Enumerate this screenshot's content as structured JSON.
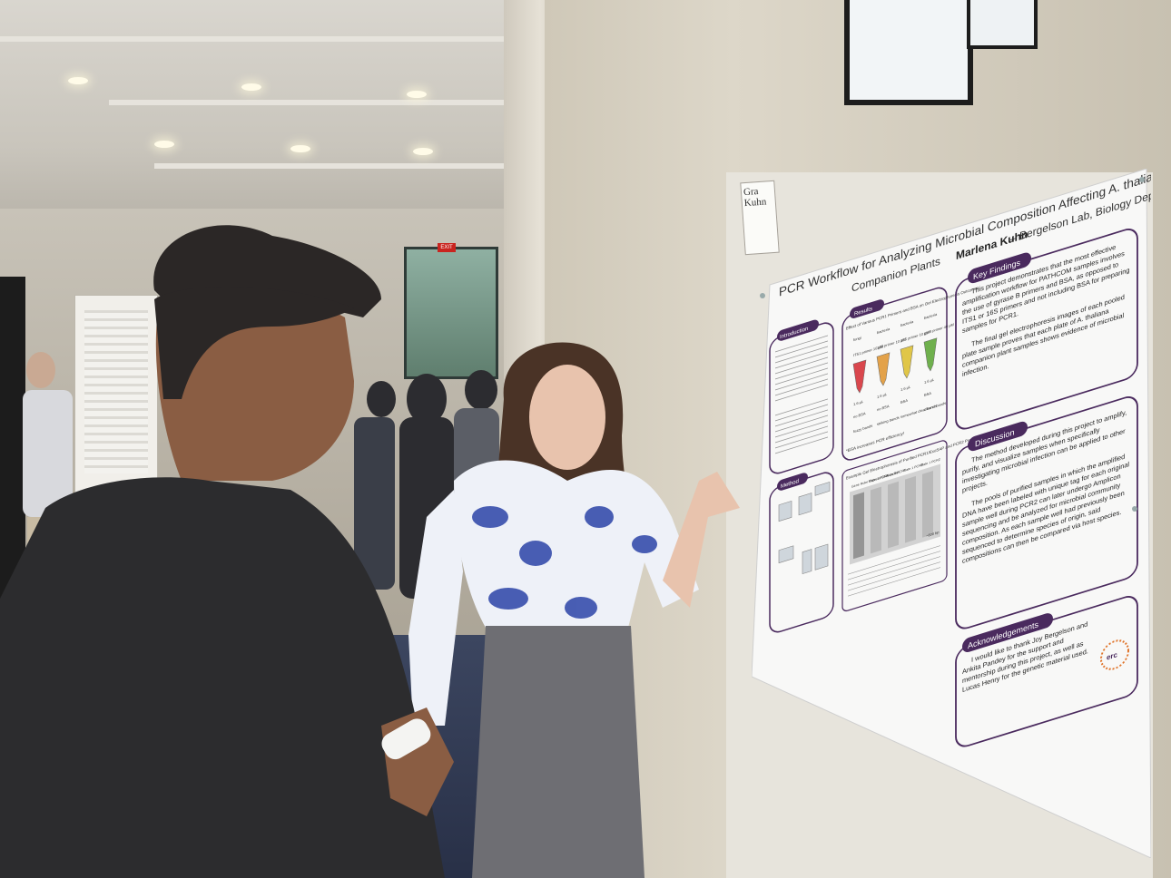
{
  "scene": {
    "exit_sign": "EXIT",
    "name_tag": "Gra Kuhn"
  },
  "poster": {
    "title_line1": "PCR Workflow for Analyzing Microbial Composition Affecting A. thaliana",
    "title_line2": "Companion Plants",
    "author": "Marlena Kuhn",
    "affiliation": "– Bergelson Lab, Biology Department",
    "sections": {
      "introduction": "Introduction",
      "results": "Results",
      "method": "Method",
      "key_findings": "Key Findings",
      "discussion": "Discussion",
      "acknowledgements": "Acknowledgements"
    },
    "results_heading": "Effect of Various PCR1 Primers and BSA  on Gel Electrophoresis Outcomes",
    "tube_labels": [
      {
        "top": "fungi",
        "primer": "ITS1 primer 10 µM",
        "bsa": "no BSA",
        "outcome": "fuzzy bands",
        "color": "#d9474d"
      },
      {
        "top": "bacteria",
        "primer": "16S primer 10 µM",
        "bsa": "no BSA",
        "outcome": "striking bands",
        "color": "#e3a24a"
      },
      {
        "top": "bacteria",
        "primer": "16S primer 10 µM",
        "bsa": "BSA",
        "outcome": "somewhat clear bands",
        "color": "#e0c648"
      },
      {
        "top": "bacteria",
        "primer": "gyrB primer 40 µM",
        "bsa": "BSA",
        "outcome": "clearer bands",
        "color": "#6fb04d"
      }
    ],
    "tube_volume": "1.6 µL",
    "bsa_note": "*BSA increases PCR efficiency!",
    "gel_heading": "Example Gel Electrophoresis of Purified PCR1/ExoSAP and PCR2 Product With Annotations",
    "gel_lanes": [
      "Gene Ruler Express DNA Ladder",
      "Plate 1 PCR1",
      "Plate 3 PCR1",
      "Plate 1 PCR2",
      "Plate 1 PCR2"
    ],
    "gel_marker": "~600 bp",
    "key_findings_text": [
      "This project demonstrates that the most effective amplification workflow for PATHCOM samples involves the use of gyrase B primers and BSA, as opposed to ITS1 or 16S primers and not including BSA for preparing samples for PCR1.",
      "The final gel electrophoresis images of each pooled plate sample proves that each plate of A. thaliana companion plant samples shows evidence of microbial infection."
    ],
    "discussion_text": [
      "The method developed during this project to amplify, purify, and visualize samples when specifically investigating microbial infection can be applied to other projects.",
      "The pools of purified samples in which the amplified DNA have been labeled with unique tag for each original sample well during PCR2 can later undergo Amplicon sequencing and be analyzed for microbial community composition. As each sample well had previously been sequenced to determine species of origin, said compositions can then be compared via host species."
    ],
    "acknowledgements_text": "I would like to thank Joy Bergelson and Ankita Pandey for the support and mentorship during this project, as well as Lucas Henry for the genetic material used.",
    "logo_text": "erc",
    "accent_color": "#4a2a5e"
  }
}
